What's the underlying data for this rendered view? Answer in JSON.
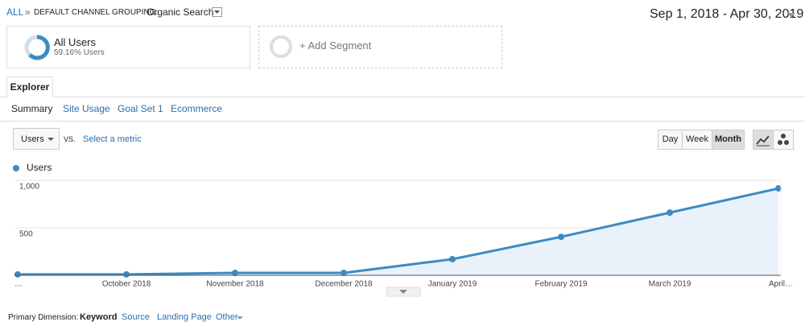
{
  "breadcrumb": {
    "root": "ALL",
    "separator": "»",
    "dimension": "DEFAULT CHANNEL GROUPING:",
    "value": "Organic Search"
  },
  "date_range": "Sep 1, 2018 - Apr 30, 2019",
  "segments": [
    {
      "name": "All Users",
      "detail": "59.16% Users"
    },
    {
      "name": "+ Add Segment"
    }
  ],
  "tabs": [
    "Explorer"
  ],
  "subtabs": [
    "Summary",
    "Site Usage",
    "Goal Set 1",
    "Ecommerce"
  ],
  "metric_selector": {
    "metric": "Users",
    "vs": "VS.",
    "secondary": "Select a metric"
  },
  "granularity": [
    "Day",
    "Week",
    "Month"
  ],
  "primary_dimension": {
    "label": "Primary Dimension:",
    "options": [
      "Keyword",
      "Source",
      "Landing Page",
      "Other"
    ]
  },
  "chart_data": {
    "type": "line",
    "categories": [
      "…",
      "October 2018",
      "November 2018",
      "December 2018",
      "January 2019",
      "February 2019",
      "March 2019",
      "April…"
    ],
    "series": [
      {
        "name": "Users",
        "color": "#3b8bc2",
        "values": [
          10,
          10,
          25,
          25,
          170,
          405,
          660,
          915
        ]
      }
    ],
    "ylim": [
      0,
      1000
    ],
    "yticks": [
      500,
      {
        "value": 1000,
        "label": "1,000"
      }
    ],
    "grid": true,
    "area_color": "#e9f1fa"
  }
}
